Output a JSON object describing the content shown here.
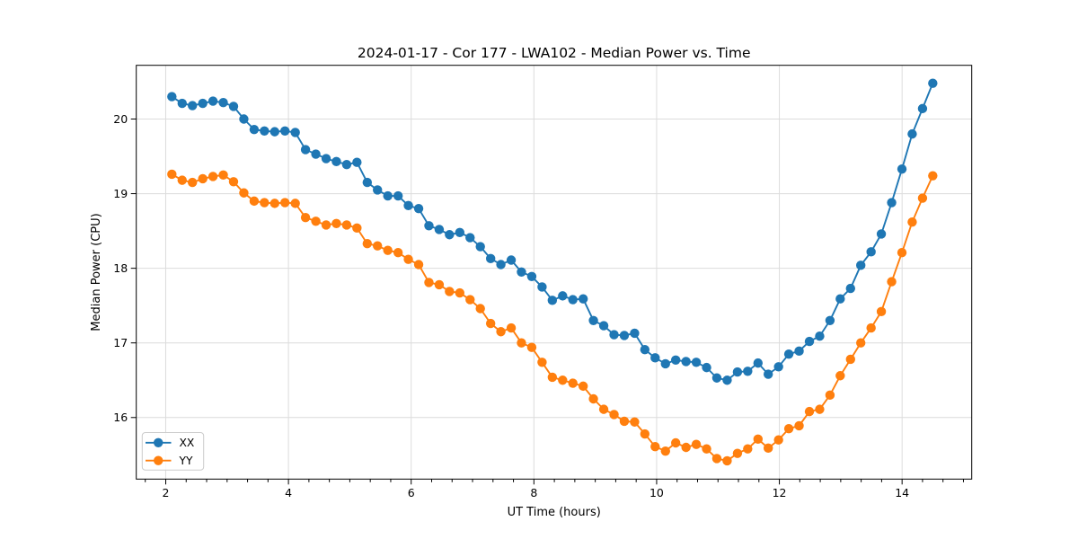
{
  "chart_data": {
    "type": "line",
    "title": "2024-01-17 - Cor 177 - LWA102 - Median Power vs. Time",
    "xlabel": "UT Time (hours)",
    "ylabel": "Median Power (CPU)",
    "xlim": [
      1.52,
      15.135
    ],
    "ylim": [
      15.175,
      20.72
    ],
    "xticks": [
      2,
      4,
      6,
      8,
      10,
      12,
      14
    ],
    "yticks": [
      16,
      17,
      18,
      19,
      20
    ],
    "x_minor_step": 0.3333,
    "grid": true,
    "legend_position": "lower left",
    "marker": "circle",
    "x": [
      2.1,
      2.268,
      2.435,
      2.603,
      2.77,
      2.938,
      3.105,
      3.273,
      3.441,
      3.608,
      3.776,
      3.943,
      4.111,
      4.278,
      4.446,
      4.614,
      4.781,
      4.949,
      5.116,
      5.284,
      5.451,
      5.619,
      5.787,
      5.954,
      6.122,
      6.289,
      6.457,
      6.624,
      6.792,
      6.96,
      7.127,
      7.295,
      7.462,
      7.63,
      7.797,
      7.965,
      8.133,
      8.3,
      8.468,
      8.635,
      8.803,
      8.97,
      9.138,
      9.306,
      9.473,
      9.641,
      9.808,
      9.976,
      10.144,
      10.311,
      10.479,
      10.646,
      10.814,
      10.981,
      11.149,
      11.317,
      11.484,
      11.652,
      11.819,
      11.987,
      12.154,
      12.322,
      12.49,
      12.657,
      12.825,
      12.992,
      13.16,
      13.327,
      13.495,
      13.662,
      13.83,
      13.998,
      14.165,
      14.333,
      14.5
    ],
    "series": [
      {
        "name": "XX",
        "color": "#1f77b4",
        "values": [
          20.3,
          20.21,
          20.18,
          20.21,
          20.24,
          20.22,
          20.17,
          20.0,
          19.86,
          19.84,
          19.83,
          19.84,
          19.82,
          19.59,
          19.53,
          19.47,
          19.43,
          19.39,
          19.42,
          19.15,
          19.05,
          18.97,
          18.97,
          18.84,
          18.8,
          18.57,
          18.52,
          18.45,
          18.48,
          18.41,
          18.29,
          18.13,
          18.05,
          18.11,
          17.95,
          17.89,
          17.75,
          17.57,
          17.63,
          17.58,
          17.59,
          17.3,
          17.23,
          17.11,
          17.1,
          17.13,
          16.91,
          16.8,
          16.72,
          16.77,
          16.75,
          16.74,
          16.67,
          16.53,
          16.5,
          16.61,
          16.62,
          16.73,
          16.58,
          16.68,
          16.85,
          16.89,
          17.02,
          17.09,
          17.3,
          17.59,
          17.73,
          18.04,
          18.22,
          18.46,
          18.88,
          19.33,
          19.8,
          20.14,
          20.48
        ]
      },
      {
        "name": "YY",
        "color": "#ff7f0e",
        "values": [
          19.26,
          19.18,
          19.15,
          19.2,
          19.23,
          19.25,
          19.16,
          19.01,
          18.9,
          18.88,
          18.87,
          18.88,
          18.87,
          18.68,
          18.63,
          18.58,
          18.6,
          18.58,
          18.54,
          18.33,
          18.3,
          18.24,
          18.21,
          18.12,
          18.05,
          17.81,
          17.78,
          17.69,
          17.67,
          17.58,
          17.46,
          17.26,
          17.15,
          17.2,
          17.0,
          16.94,
          16.74,
          16.54,
          16.5,
          16.46,
          16.42,
          16.25,
          16.11,
          16.04,
          15.95,
          15.94,
          15.78,
          15.61,
          15.55,
          15.66,
          15.6,
          15.64,
          15.58,
          15.45,
          15.42,
          15.52,
          15.58,
          15.71,
          15.59,
          15.7,
          15.85,
          15.89,
          16.08,
          16.11,
          16.3,
          16.56,
          16.78,
          17.0,
          17.2,
          17.42,
          17.82,
          18.21,
          18.62,
          18.94,
          19.24
        ]
      }
    ]
  },
  "legend": {
    "items": [
      {
        "label": "XX"
      },
      {
        "label": "YY"
      }
    ]
  }
}
